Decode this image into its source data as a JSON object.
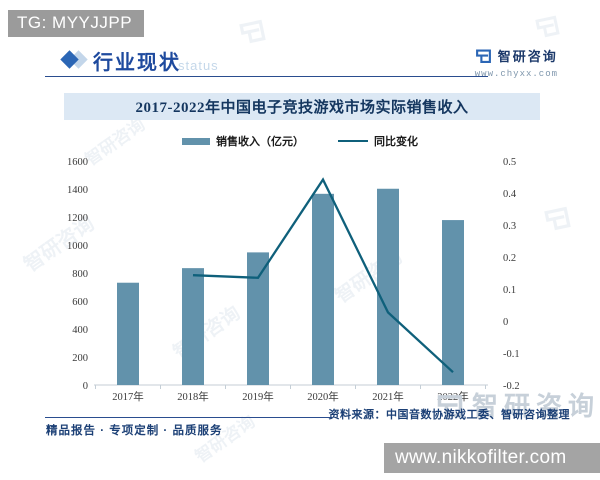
{
  "overlay": {
    "tg_label": "TG: MYYJJPP",
    "url_label": "www.nikkofilter.com"
  },
  "header": {
    "section_title": "行业现状",
    "section_watermark": "status",
    "brand_name": "智研咨询",
    "brand_site": "www.chyxx.com"
  },
  "chart_data": {
    "type": "bar+line",
    "title": "2017-2022年中国电子竞技游戏市场实际销售收入",
    "categories": [
      "2017年",
      "2018年",
      "2019年",
      "2020年",
      "2021年",
      "2022年"
    ],
    "series": [
      {
        "name": "销售收入（亿元）",
        "type": "bar",
        "axis": "left",
        "color": "#6292ab",
        "values": [
          730.6,
          834.7,
          947.3,
          1365.6,
          1401.8,
          1178.0
        ]
      },
      {
        "name": "同比变化",
        "type": "line",
        "axis": "right",
        "color": "#0f607b",
        "values": [
          null,
          0.143,
          0.135,
          0.442,
          0.027,
          -0.16
        ]
      }
    ],
    "left_axis": {
      "min": 0,
      "max": 1600,
      "step": 200,
      "tick_labels": [
        "1600",
        "1400",
        "1200",
        "1000",
        "800",
        "600",
        "400",
        "200",
        "0"
      ]
    },
    "right_axis": {
      "min": -0.2,
      "max": 0.5,
      "step": 0.1,
      "tick_labels": [
        "0.5",
        "0.4",
        "0.3",
        "0.2",
        "0.1",
        "0",
        "-0.1",
        "-0.2"
      ]
    },
    "legend_position": "top",
    "grid": false
  },
  "footer": {
    "tagline": "精品报告 · 专项定制 · 品质服务",
    "source": "资料来源：中国音数协游戏工委、智研咨询整理"
  },
  "watermark": {
    "brand": "智研咨询"
  },
  "colors": {
    "bar": "#6292ab",
    "line": "#0f607b",
    "banner_bg": "#dce8f4",
    "banner_text": "#14365f",
    "accent_blue": "#2b66b5",
    "navy_text": "#1c4076",
    "badge_gray": "#9b9b9b",
    "url_bar_gray": "#a4a4a4",
    "watermark_blue": "#9db4ca"
  }
}
